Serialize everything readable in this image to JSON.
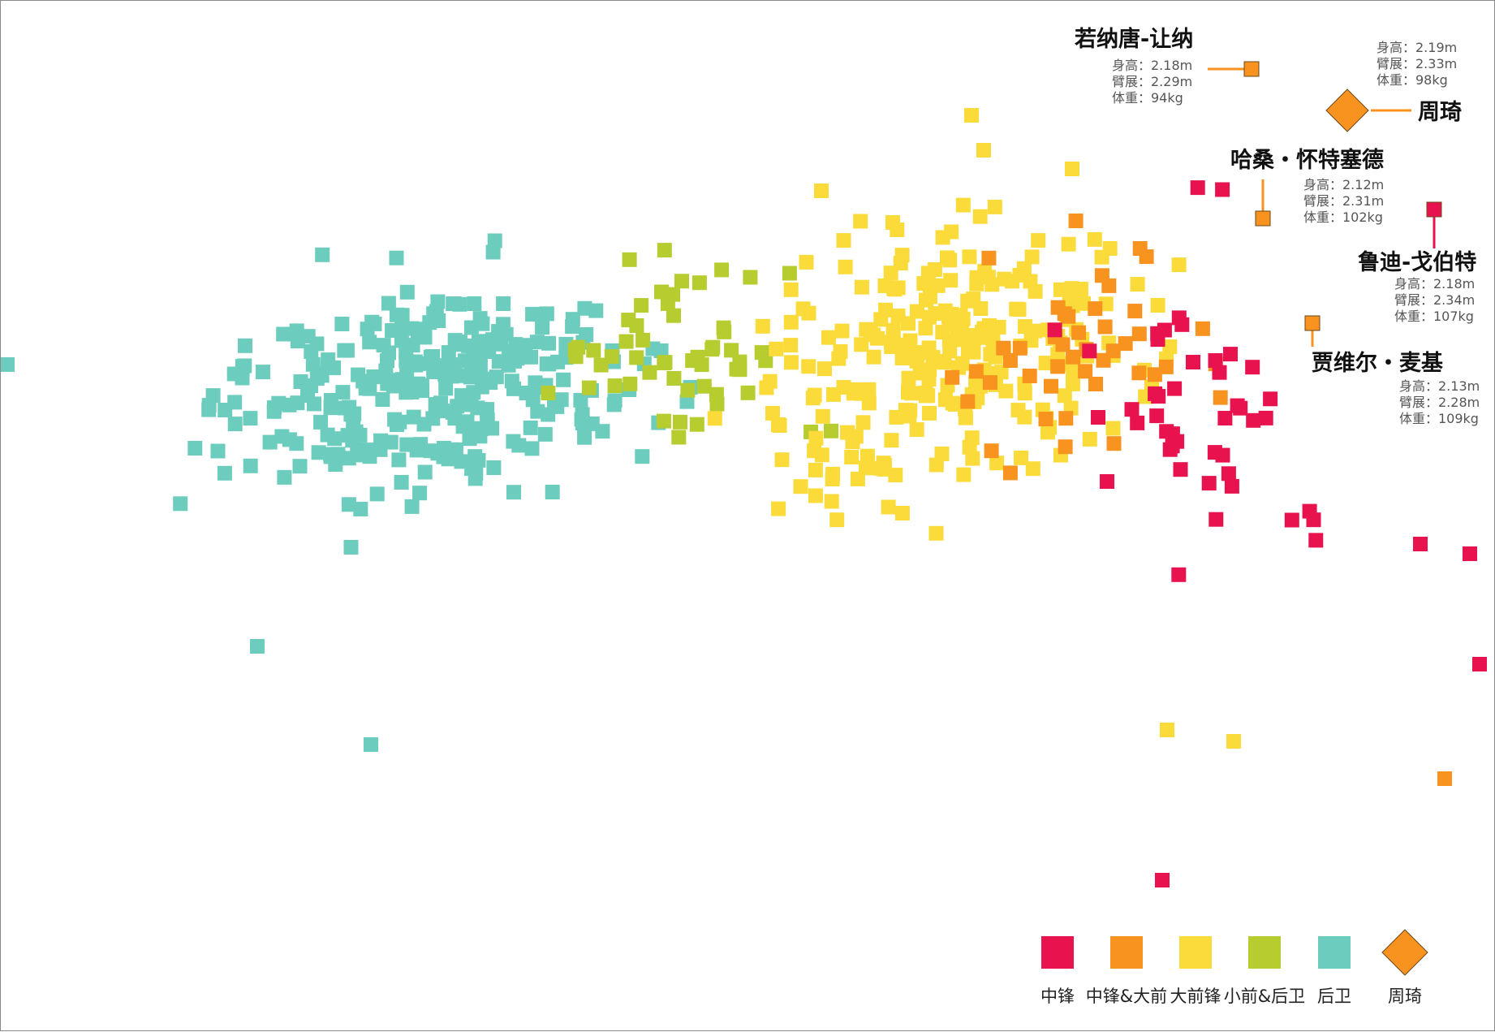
{
  "chart_data": {
    "type": "scatter",
    "title": "",
    "xlabel": "",
    "ylabel": "",
    "axes_visible": false,
    "grid": false,
    "legend_position": "bottom-right",
    "categories": [
      {
        "key": "c",
        "label": "中锋",
        "color": "#e8124e",
        "marker": "square"
      },
      {
        "key": "cf",
        "label": "中锋&大前",
        "color": "#f7931e",
        "marker": "square"
      },
      {
        "key": "pf",
        "label": "大前锋",
        "color": "#fbdb3a",
        "marker": "square"
      },
      {
        "key": "sg",
        "label": "小前&后卫",
        "color": "#b7cc2e",
        "marker": "square"
      },
      {
        "key": "g",
        "label": "后卫",
        "color": "#6ccdbe",
        "marker": "square"
      },
      {
        "key": "zq",
        "label": "周琦",
        "color": "#f7931e",
        "marker": "diamond"
      }
    ],
    "highlighted_players": [
      {
        "name": "若纳唐-让纳",
        "category": "cf",
        "lines": [
          "身高：2.18m",
          "臂展：2.29m",
          "体重：94kg"
        ]
      },
      {
        "name": "周琦",
        "category": "zq",
        "lines": [
          "身高：2.19m",
          "臂展：2.33m",
          "体重：98kg"
        ]
      },
      {
        "name": "哈桑・怀特塞德",
        "category": "cf",
        "lines": [
          "身高：2.12m",
          "臂展：2.31m",
          "体重：102kg"
        ]
      },
      {
        "name": "鲁迪-戈伯特",
        "category": "c",
        "lines": [
          "身高：2.18m",
          "臂展：2.34m",
          "体重：107kg"
        ]
      },
      {
        "name": "贾维尔・麦基",
        "category": "cf",
        "lines": [
          "身高：2.13m",
          "臂展：2.28m",
          "体重：109kg"
        ]
      }
    ],
    "point_counts_approx": {
      "c": 45,
      "cf": 45,
      "pf": 260,
      "sg": 55,
      "g": 300
    }
  }
}
